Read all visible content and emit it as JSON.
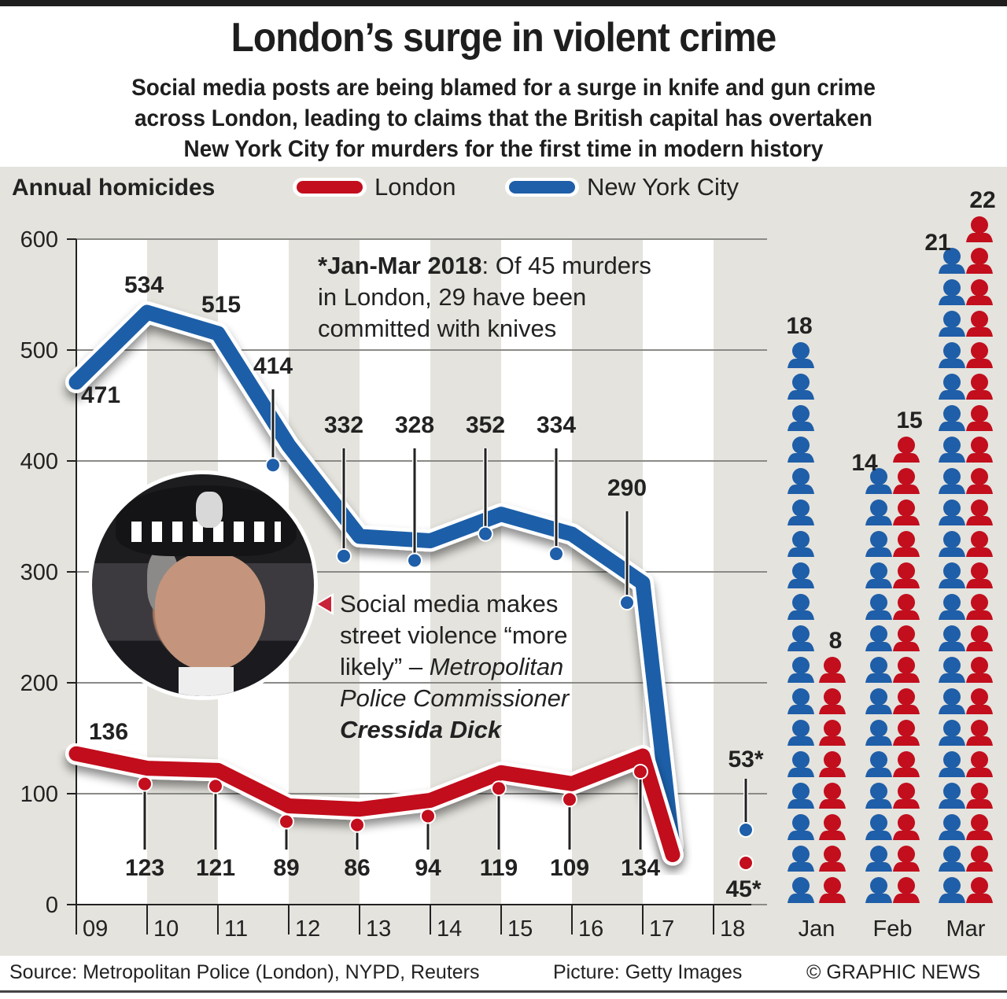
{
  "header": {
    "title": "London’s surge in violent crime",
    "subtitle_lines": [
      "Social media posts are being blamed for a surge in knife and gun crime",
      "across London, leading to claims that the British capital has overtaken",
      "New York City for murders for the first time in modern history"
    ]
  },
  "colors": {
    "london": "#c20e1d",
    "nyc": "#1f5ea8",
    "panel": "#e4e3dd",
    "stripe": "#ffffff"
  },
  "chart_data": [
    {
      "type": "line",
      "title": "Annual homicides",
      "xlabel": "",
      "ylabel": "",
      "x": [
        "09",
        "10",
        "11",
        "12",
        "13",
        "14",
        "15",
        "16",
        "17",
        "18"
      ],
      "ylim": [
        0,
        600
      ],
      "yticks": [
        "0",
        "100",
        "200",
        "300",
        "400",
        "500",
        "600"
      ],
      "grid": true,
      "legend_position": "top",
      "series": [
        {
          "name": "London",
          "values": [
            136,
            123,
            121,
            89,
            86,
            94,
            119,
            109,
            134,
            45
          ],
          "labels": [
            "136",
            "123",
            "121",
            "89",
            "86",
            "94",
            "119",
            "109",
            "134",
            "45*"
          ]
        },
        {
          "name": "New York City",
          "values": [
            471,
            534,
            515,
            414,
            332,
            328,
            352,
            334,
            290,
            53
          ],
          "labels": [
            "471",
            "534",
            "515",
            "414",
            "332",
            "328",
            "352",
            "334",
            "290",
            "53*"
          ]
        }
      ]
    },
    {
      "type": "bar",
      "title": "",
      "subtitle": "",
      "categories": [
        "Jan",
        "Feb",
        "Mar"
      ],
      "series": [
        {
          "name": "New York City",
          "values": [
            18,
            14,
            21
          ],
          "labels": [
            "18",
            "14",
            "21"
          ]
        },
        {
          "name": "London",
          "values": [
            8,
            15,
            22
          ],
          "labels": [
            "8",
            "15",
            "22"
          ]
        }
      ],
      "mark": "person-pictogram"
    }
  ],
  "annotations": {
    "note_bold": "*Jan-Mar 2018",
    "note_rest": ": Of 45 murders",
    "note_line2": "in London, 29 have been",
    "note_line3": "committed with knives",
    "quote_line1": "Social media makes",
    "quote_line2": "street violence “more",
    "quote_line3a": "likely” – ",
    "quote_line3b": "Metropolitan",
    "quote_line4": "Police Commissioner",
    "quote_name": "Cressida Dick"
  },
  "footer": {
    "source": "Source: Metropolitan Police (London), NYPD, Reuters",
    "picture": "Picture: Getty Images",
    "copyright": "© GRAPHIC NEWS"
  }
}
